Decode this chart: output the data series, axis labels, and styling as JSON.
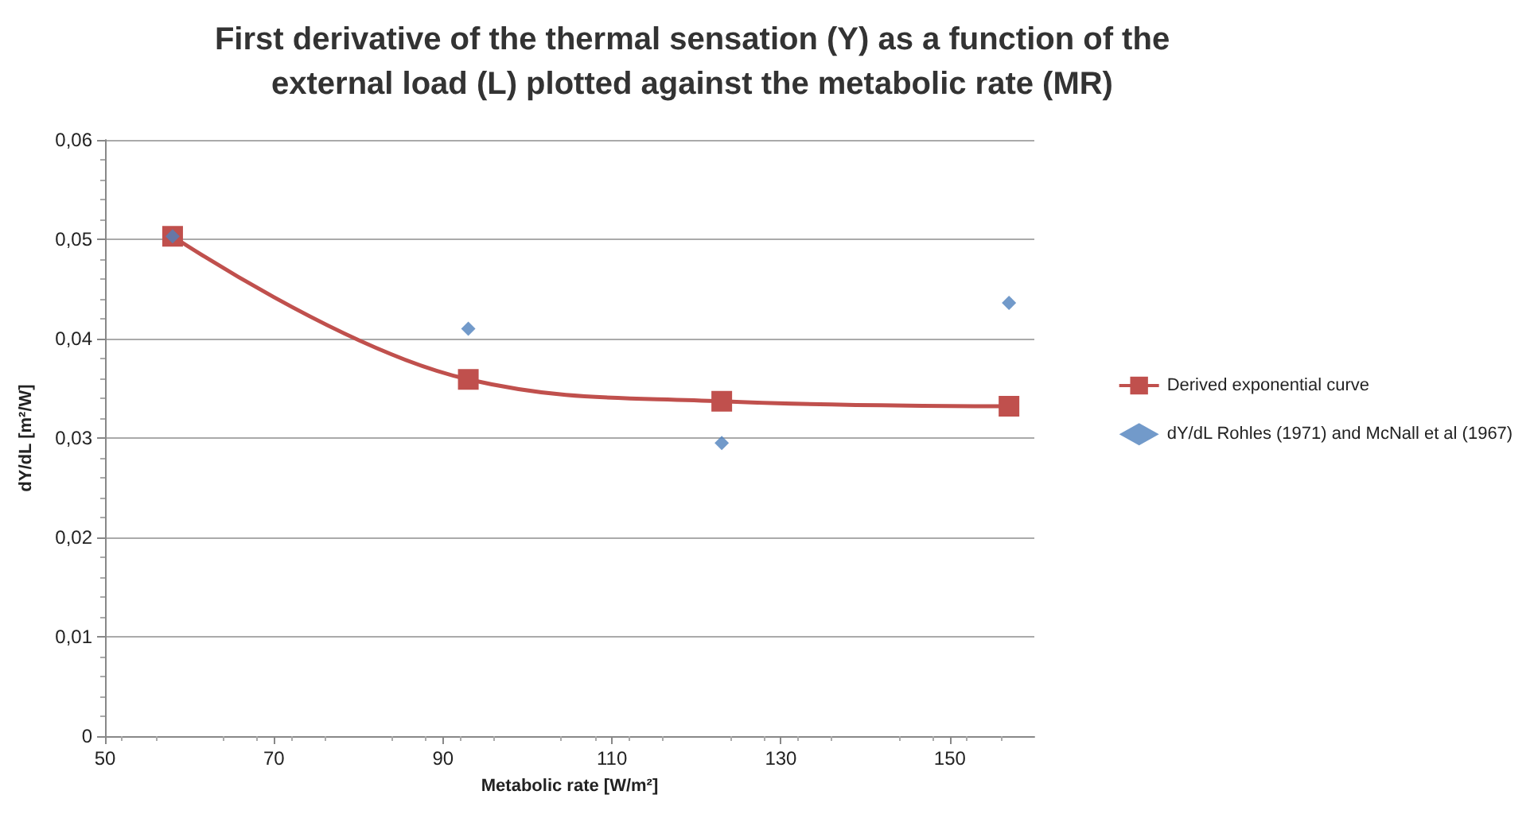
{
  "chart_data": {
    "type": "line",
    "title": "First derivative of the thermal sensation (Y) as a function of the\nexternal load (L) plotted against the metabolic rate (MR)",
    "xlabel": "Metabolic rate [W/m²]",
    "ylabel": "dY/dL [m²/W]",
    "x": [
      58,
      93,
      123,
      157
    ],
    "series": [
      {
        "name": "Derived exponential curve",
        "color": "#c0504d",
        "marker": "square",
        "values": [
          0.0503,
          0.0359,
          0.0337,
          0.0332
        ]
      },
      {
        "name": "dY/dL Rohles (1971) and McNall et al (1967)",
        "type": "scatter",
        "color": "#4f81bd",
        "marker": "diamond",
        "values": [
          0.0503,
          0.041,
          0.0295,
          0.0436
        ]
      }
    ],
    "xlim": [
      50,
      160
    ],
    "xticks": [
      50,
      70,
      90,
      110,
      130,
      150
    ],
    "ylim": [
      0,
      0.06
    ],
    "yticks": [
      {
        "value": 0,
        "label": "0"
      },
      {
        "value": 0.01,
        "label": "0,01"
      },
      {
        "value": 0.02,
        "label": "0,02"
      },
      {
        "value": 0.03,
        "label": "0,03"
      },
      {
        "value": 0.04,
        "label": "0,04"
      },
      {
        "value": 0.05,
        "label": "0,05"
      },
      {
        "value": 0.06,
        "label": "0,06"
      }
    ],
    "grid": "y",
    "legend": "right"
  }
}
